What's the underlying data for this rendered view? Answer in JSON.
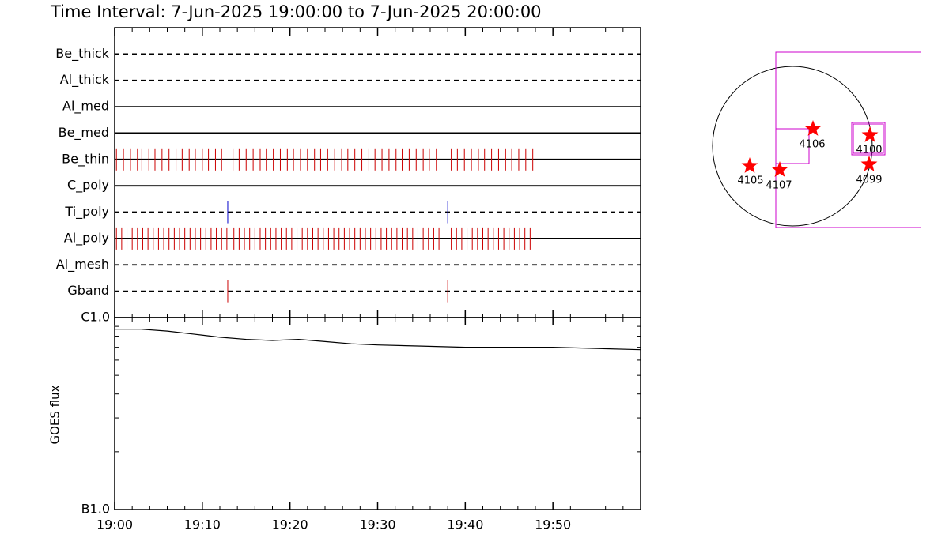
{
  "chart_data": [
    {
      "type": "timeline",
      "title": "Time Interval:  7-Jun-2025 19:00:00 to  7-Jun-2025 20:00:00",
      "xlim": [
        0,
        60
      ],
      "rows": [
        {
          "name": "Be_thick",
          "style": "dashed",
          "color": "#cc0000",
          "times": []
        },
        {
          "name": "Al_thick",
          "style": "dashed",
          "color": "#cc0000",
          "times": []
        },
        {
          "name": "Al_med",
          "style": "solid",
          "color": "#cc0000",
          "times": []
        },
        {
          "name": "Be_med",
          "style": "solid",
          "color": "#cc0000",
          "times": []
        },
        {
          "name": "Be_thin",
          "style": "solid",
          "color": "#cc0000",
          "times": [
            0.2,
            1.0,
            1.8,
            2.6,
            3.1,
            3.9,
            4.6,
            5.4,
            6.2,
            7.0,
            7.7,
            8.5,
            9.2,
            10.0,
            10.7,
            11.5,
            12.2,
            13.5,
            14.2,
            15.0,
            15.8,
            16.6,
            17.3,
            18.1,
            18.9,
            19.7,
            20.4,
            21.2,
            22.0,
            22.8,
            23.5,
            24.3,
            25.1,
            25.9,
            26.6,
            27.4,
            28.2,
            29.0,
            29.7,
            30.5,
            31.3,
            32.1,
            32.8,
            33.6,
            34.4,
            35.2,
            35.9,
            36.7,
            38.4,
            39.1,
            39.9,
            40.7,
            41.5,
            42.2,
            43.0,
            43.8,
            44.6,
            45.3,
            46.1,
            46.9,
            47.7
          ]
        },
        {
          "name": "C_poly",
          "style": "solid",
          "color": "#cc0000",
          "times": []
        },
        {
          "name": "Ti_poly",
          "style": "dashed",
          "color": "#0000cc",
          "times": [
            12.9,
            38.0
          ]
        },
        {
          "name": "Al_poly",
          "style": "solid",
          "color": "#cc0000",
          "times": [
            0.2,
            0.8,
            1.4,
            2.0,
            2.6,
            3.2,
            3.8,
            4.4,
            5.0,
            5.6,
            6.2,
            6.8,
            7.4,
            8.0,
            8.6,
            9.2,
            9.8,
            10.4,
            11.0,
            11.6,
            12.2,
            12.8,
            13.6,
            14.2,
            14.8,
            15.4,
            16.0,
            16.6,
            17.2,
            17.8,
            18.4,
            19.0,
            19.6,
            20.2,
            20.8,
            21.4,
            22.0,
            22.6,
            23.2,
            23.8,
            24.4,
            25.0,
            25.6,
            26.2,
            26.8,
            27.4,
            28.0,
            28.6,
            29.2,
            29.8,
            30.4,
            31.0,
            31.6,
            32.2,
            32.8,
            33.4,
            34.0,
            34.6,
            35.2,
            35.8,
            36.4,
            37.0,
            38.4,
            39.0,
            39.6,
            40.2,
            40.8,
            41.4,
            42.0,
            42.6,
            43.2,
            43.8,
            44.4,
            45.0,
            45.6,
            46.2,
            46.8,
            47.4
          ]
        },
        {
          "name": "Al_mesh",
          "style": "dashed",
          "color": "#cc0000",
          "times": []
        },
        {
          "name": "Gband",
          "style": "dashed",
          "color": "#cc0000",
          "times": [
            12.9,
            38.0
          ]
        }
      ]
    },
    {
      "type": "line",
      "ylabel": "GOES flux",
      "log": true,
      "color": "#000000",
      "x": [
        0,
        3,
        6,
        9,
        12,
        15,
        18,
        21,
        24,
        27,
        30,
        35,
        40,
        45,
        50,
        55,
        60
      ],
      "values": [
        8.7e-07,
        8.7e-07,
        8.5e-07,
        8.2e-07,
        7.9e-07,
        7.7e-07,
        7.6e-07,
        7.7e-07,
        7.5e-07,
        7.3e-07,
        7.2e-07,
        7.1e-07,
        7e-07,
        7e-07,
        7e-07,
        6.9e-07,
        6.8e-07
      ],
      "xlim": [
        0,
        60
      ],
      "xticks": [
        {
          "value": 0,
          "label": "19:00"
        },
        {
          "value": 10,
          "label": "19:10"
        },
        {
          "value": 20,
          "label": "19:20"
        },
        {
          "value": 30,
          "label": "19:30"
        },
        {
          "value": 40,
          "label": "19:40"
        },
        {
          "value": 50,
          "label": "19:50"
        }
      ],
      "ylim": [
        1e-07,
        1e-06
      ],
      "yticks": [
        {
          "value": 1e-07,
          "label": "B1.0"
        },
        {
          "value": 1e-06,
          "label": "C1.0"
        }
      ]
    }
  ],
  "map": {
    "regions": [
      "4105",
      "4107",
      "4106",
      "4100",
      "4099"
    ]
  }
}
